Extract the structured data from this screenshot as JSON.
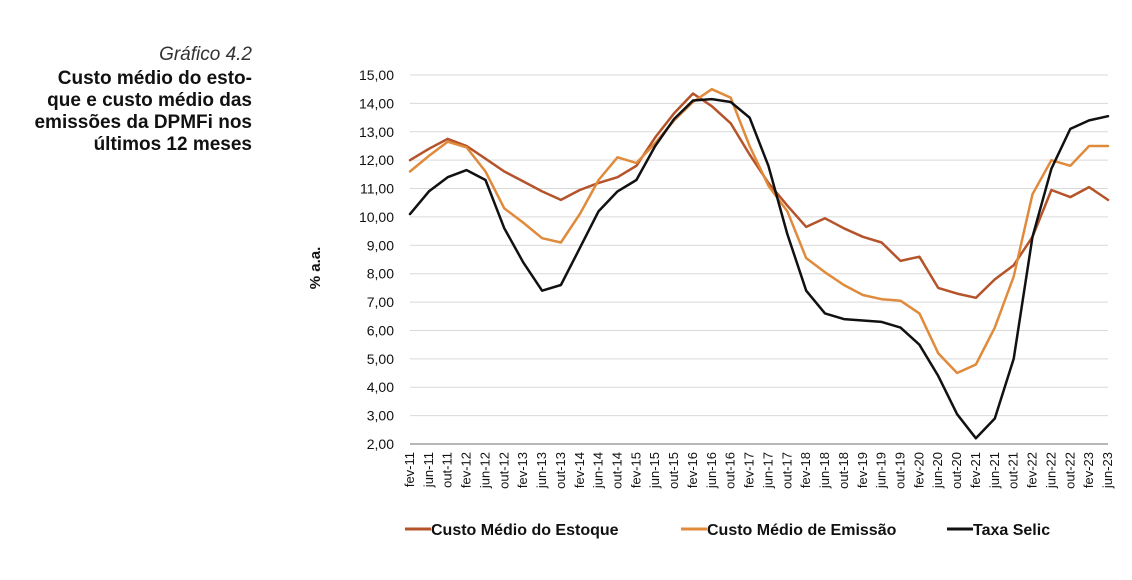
{
  "caption": {
    "kicker": "Gráfico 4.2",
    "title": "Custo médio do esto-\nque e custo médio das\nemissões da DPMFi nos\núltimos 12 meses"
  },
  "colors": {
    "estoque": "#b5532a",
    "emissao": "#e08a3c",
    "selic": "#111111",
    "grid": "#d9d9d9",
    "axis": "#8c8c8c"
  },
  "chart_data": {
    "type": "line",
    "ylabel": "% a.a.",
    "xlabel": "",
    "ylim": [
      2,
      15
    ],
    "yticks": [
      "2,00",
      "3,00",
      "4,00",
      "5,00",
      "6,00",
      "7,00",
      "8,00",
      "9,00",
      "10,00",
      "11,00",
      "12,00",
      "13,00",
      "14,00",
      "15,00"
    ],
    "xticks": [
      "fev-11",
      "jun-11",
      "out-11",
      "fev-12",
      "jun-12",
      "out-12",
      "fev-13",
      "jun-13",
      "out-13",
      "fev-14",
      "jun-14",
      "out-14",
      "fev-15",
      "jun-15",
      "out-15",
      "fev-16",
      "jun-16",
      "out-16",
      "fev-17",
      "jun-17",
      "out-17",
      "fev-18",
      "jun-18",
      "out-18",
      "fev-19",
      "jun-19",
      "out-19",
      "fev-20",
      "jun-20",
      "out-20",
      "fev-21",
      "jun-21",
      "out-21",
      "fev-22",
      "jun-22",
      "out-22",
      "fev-23",
      "jun-23"
    ],
    "grid": true,
    "legend_position": "bottom",
    "series": [
      {
        "name": "Custo Médio do Estoque",
        "color_key": "estoque",
        "values": [
          12.0,
          12.4,
          12.75,
          12.5,
          12.05,
          11.6,
          11.25,
          10.9,
          10.6,
          10.95,
          11.2,
          11.4,
          11.8,
          12.8,
          13.65,
          14.35,
          13.9,
          13.3,
          12.2,
          11.2,
          10.4,
          9.65,
          9.95,
          9.6,
          9.3,
          9.1,
          8.45,
          8.6,
          7.5,
          7.3,
          7.15,
          7.8,
          8.3,
          9.3,
          10.95,
          10.7,
          11.05,
          10.6
        ]
      },
      {
        "name": "Custo Médio de Emissão",
        "color_key": "emissao",
        "values": [
          11.6,
          12.15,
          12.65,
          12.45,
          11.6,
          10.3,
          9.8,
          9.25,
          9.1,
          10.1,
          11.3,
          12.1,
          11.9,
          12.6,
          13.4,
          14.05,
          14.5,
          14.2,
          12.5,
          11.1,
          10.2,
          8.55,
          8.05,
          7.6,
          7.25,
          7.1,
          7.05,
          6.6,
          5.2,
          4.5,
          4.8,
          6.1,
          7.9,
          10.8,
          12.0,
          11.8,
          12.5,
          12.5
        ]
      },
      {
        "name": "Taxa Selic",
        "color_key": "selic",
        "values": [
          10.1,
          10.9,
          11.4,
          11.65,
          11.3,
          9.6,
          8.4,
          7.4,
          7.6,
          8.9,
          10.2,
          10.9,
          11.3,
          12.5,
          13.45,
          14.1,
          14.15,
          14.05,
          13.5,
          11.8,
          9.4,
          7.4,
          6.6,
          6.4,
          6.35,
          6.3,
          6.1,
          5.5,
          4.4,
          3.05,
          2.2,
          2.9,
          5.0,
          9.3,
          11.7,
          13.1,
          13.4,
          13.55
        ]
      }
    ]
  }
}
